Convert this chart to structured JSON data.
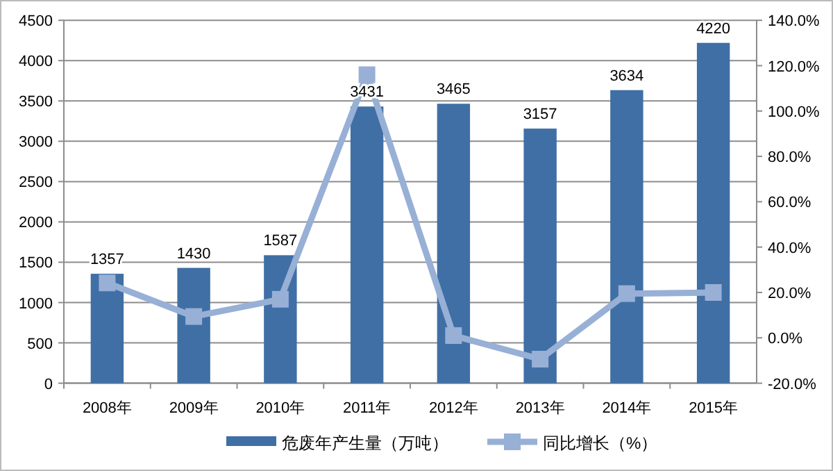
{
  "chart_data": {
    "type": "bar",
    "categories": [
      "2008年",
      "2009年",
      "2010年",
      "2011年",
      "2012年",
      "2013年",
      "2014年",
      "2015年"
    ],
    "series": [
      {
        "name": "危废年产生量（万吨）",
        "color": "#3f6fa5",
        "values": [
          1357,
          1430,
          1587,
          3431,
          3465,
          3157,
          3634,
          4220
        ],
        "value_labels": [
          "1357",
          "1430",
          "1587",
          "3431",
          "3465",
          "3157",
          "3634",
          "4220"
        ]
      },
      {
        "name": "同比增长（%）",
        "type": "line",
        "axis": "y2",
        "color": "#98b0d6",
        "marker": "square",
        "values": [
          24.2,
          9.4,
          17,
          116,
          1,
          -9.4,
          19.5,
          20
        ]
      }
    ],
    "ylim": [
      0,
      4500
    ],
    "yticks": [
      0,
      500,
      1000,
      1500,
      2000,
      2500,
      3000,
      3500,
      4000,
      4500
    ],
    "y2lim": [
      -20,
      140
    ],
    "y2ticks": [
      {
        "value": -20,
        "label": "-20.0%"
      },
      {
        "value": 0,
        "label": "0.0%"
      },
      {
        "value": 20,
        "label": "20.0%"
      },
      {
        "value": 40,
        "label": "40.0%"
      },
      {
        "value": 60,
        "label": "60.0%"
      },
      {
        "value": 80,
        "label": "80.0%"
      },
      {
        "value": 100,
        "label": "100.0%"
      },
      {
        "value": 120,
        "label": "120.0%"
      },
      {
        "value": 140,
        "label": "140.0%"
      }
    ],
    "grid": "y",
    "legend": "bottom"
  }
}
